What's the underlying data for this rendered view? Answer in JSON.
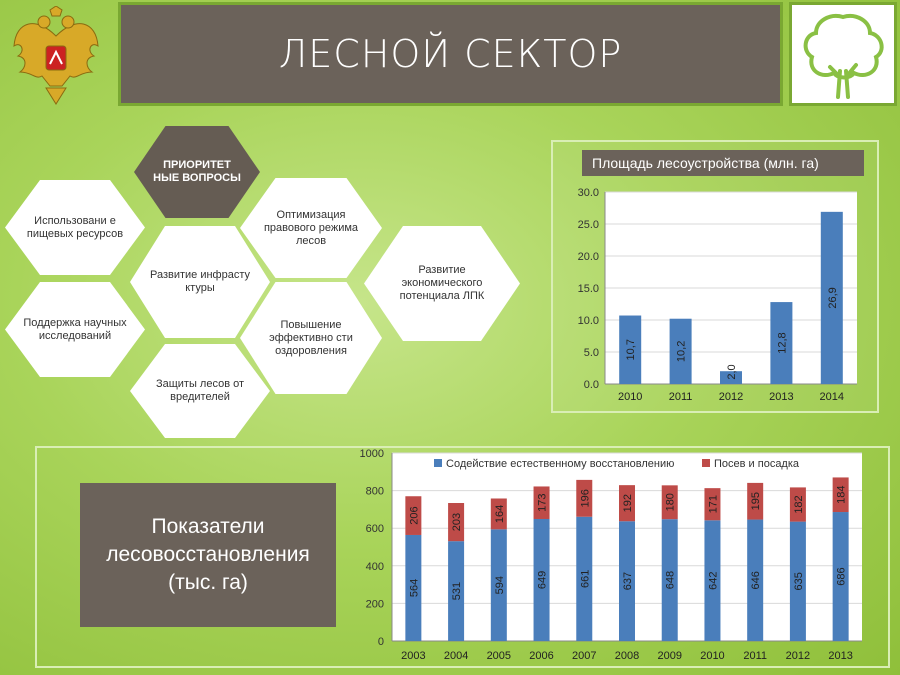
{
  "header": {
    "title": "ЛЕСНОЙ СЕКТОР",
    "emblem_icon": "russian-coat-of-arms-icon",
    "tree_icon": "tree-outline-icon"
  },
  "priorities": {
    "center": "ПРИОРИТЕТ НЫЕ ВОПРОСЫ",
    "items": [
      "Использовани е пищевых ресурсов",
      "Оптимизация правового режима лесов",
      "Развитие инфрасту ктуры",
      "Развитие экономического потенциала ЛПК",
      "Поддержка научных исследований",
      "Повышение эффективно сти оздоровления",
      "Защиты лесов от вредителей"
    ]
  },
  "colors": {
    "blue": "#4a7ebb",
    "red": "#be4b48",
    "panel": "#6b625a",
    "accent": "#7aa832"
  },
  "chart_data": [
    {
      "type": "bar",
      "title": "Площадь лесоустройства  (млн. га)",
      "categories": [
        "2010",
        "2011",
        "2012",
        "2013",
        "2014"
      ],
      "values": [
        10.7,
        10.2,
        2.0,
        12.8,
        26.9
      ],
      "value_labels": [
        "10,7",
        "10,2",
        "2,0",
        "12,8",
        "26,9"
      ],
      "ylim": [
        0,
        30
      ],
      "yticks": [
        "0.0",
        "5.0",
        "10.0",
        "15.0",
        "20.0",
        "25.0",
        "30.0"
      ],
      "grid": true
    },
    {
      "type": "bar",
      "stacked": true,
      "title": "Показатели лесовосстановления (тыс. га)",
      "categories": [
        "2003",
        "2004",
        "2005",
        "2006",
        "2007",
        "2008",
        "2009",
        "2010",
        "2011",
        "2012",
        "2013"
      ],
      "series": [
        {
          "name": "Содействие естественному восстановлению",
          "values": [
            564,
            531,
            594,
            649,
            661,
            637,
            648,
            642,
            646,
            635,
            686
          ]
        },
        {
          "name": "Посев и посадка",
          "values": [
            206,
            203,
            164,
            173,
            196,
            192,
            180,
            171,
            195,
            182,
            184
          ]
        }
      ],
      "ylim": [
        0,
        1000
      ],
      "yticks": [
        "0",
        "200",
        "400",
        "600",
        "800",
        "1000"
      ],
      "legend": "top",
      "grid": true
    }
  ]
}
